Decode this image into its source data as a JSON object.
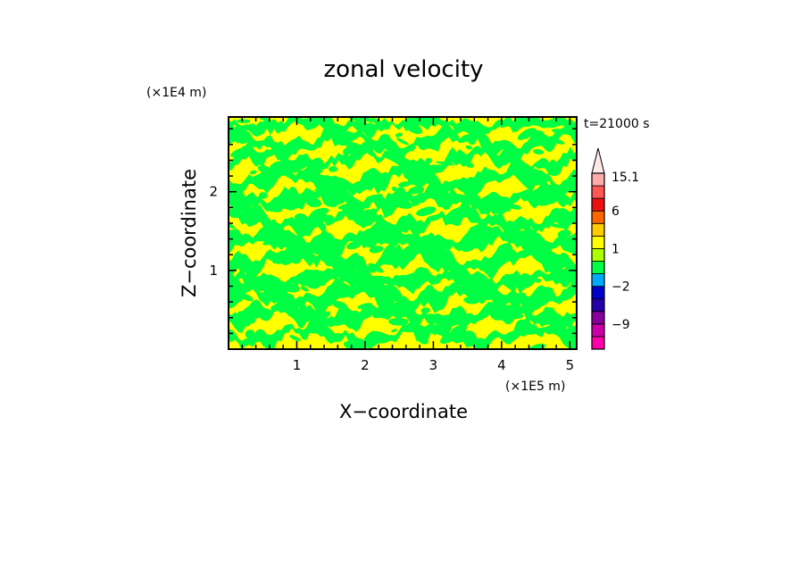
{
  "chart_data": {
    "type": "heatmap",
    "title": "zonal velocity",
    "xlabel": "X−coordinate",
    "ylabel": "Z−coordinate",
    "x_unit": "(×1E5 m)",
    "y_unit": "(×1E4 m)",
    "time_label": "t=21000 s",
    "xlim": [
      0,
      5.1
    ],
    "ylim": [
      0,
      2.95
    ],
    "x_ticks": [
      1,
      2,
      3,
      4,
      5
    ],
    "y_ticks": [
      1,
      2
    ],
    "x_tick_labels": [
      "1",
      "2",
      "3",
      "4",
      "5"
    ],
    "y_tick_labels": [
      "1",
      "2"
    ],
    "grid": false,
    "field_colors": {
      "yellow": "#ffff00",
      "green": "#00ff44"
    },
    "colorbar": {
      "levels": [
        -15.1,
        -12,
        -9,
        -6,
        -4,
        -2,
        -1,
        0,
        1,
        2,
        4,
        6,
        9,
        12,
        15.1
      ],
      "colors": [
        "#ff00aa",
        "#cc00aa",
        "#880099",
        "#2200aa",
        "#0000cc",
        "#00aaff",
        "#00ff44",
        "#aaff00",
        "#ffff00",
        "#ffcc00",
        "#ff6600",
        "#ee1111",
        "#ff5555",
        "#ffaaaa"
      ],
      "extend_color": "#ffe8e8",
      "tick_labels": [
        "15.1",
        "6",
        "1",
        "−2",
        "−9"
      ],
      "tick_values": [
        15.1,
        6,
        1,
        -2,
        -9
      ]
    }
  }
}
